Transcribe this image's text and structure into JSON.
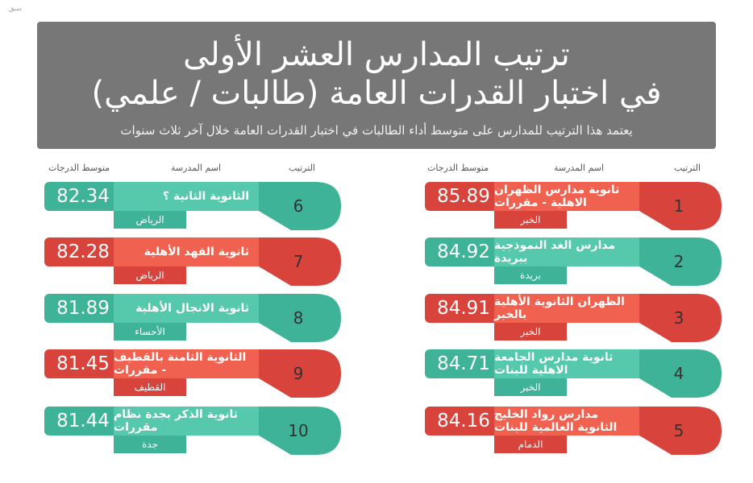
{
  "logo": "سبق",
  "header": {
    "title_line1": "ترتيب المدارس العشر الأولى",
    "title_line2": "في اختبار القدرات العامة (طالبات / علمي)",
    "subtitle": "يعتمد هذا الترتيب للمدارس على متوسط أداء الطالبات في اختبار القدرات العامة خلال آخر ثلاث سنوات"
  },
  "columns": {
    "average": "متوسط الدرجات",
    "school_name": "اسم المدرسة",
    "rank": "الترتيب"
  },
  "colors": {
    "green_dark": "#3fb397",
    "green_light": "#56c8ab",
    "red_dark": "#d8433c",
    "red_light": "#f0624f"
  },
  "right_list": [
    {
      "rank": "1",
      "school": "ثانوية مدارس الظهران الاهلية - مقررات",
      "city": "الخبر",
      "score": "85.89",
      "color": "red"
    },
    {
      "rank": "2",
      "school": "مدارس الغد النموذجية ببريدة",
      "city": "بريدة",
      "score": "84.92",
      "color": "green"
    },
    {
      "rank": "3",
      "school": "الظهران الثانوية الأهلية بالخبر",
      "city": "الخبر",
      "score": "84.91",
      "color": "red"
    },
    {
      "rank": "4",
      "school": "ثانوية مدارس الجامعة الاهلية للبنات",
      "city": "الخبر",
      "score": "84.71",
      "color": "green"
    },
    {
      "rank": "5",
      "school": "مدارس رواد الخليج الثانوية العالمية للبنات",
      "city": "الدمام",
      "score": "84.16",
      "color": "red"
    }
  ],
  "left_list": [
    {
      "rank": "6",
      "school": "الثانوية الثانية ؟",
      "city": "الرياض",
      "score": "82.34",
      "color": "green"
    },
    {
      "rank": "7",
      "school": "ثانوية الفهد الأهلية",
      "city": "الرياض",
      "score": "82.28",
      "color": "red"
    },
    {
      "rank": "8",
      "school": "ثانوية الانجال الأهلية",
      "city": "الأحساء",
      "score": "81.89",
      "color": "green"
    },
    {
      "rank": "9",
      "school": "الثانوية الثامنة بالقطيف - مقررات",
      "city": "القطيف",
      "score": "81.45",
      "color": "red"
    },
    {
      "rank": "10",
      "school": "ثانوية الذكر بجدة نظام مقررات",
      "city": "جدة",
      "score": "81.44",
      "color": "green"
    }
  ]
}
